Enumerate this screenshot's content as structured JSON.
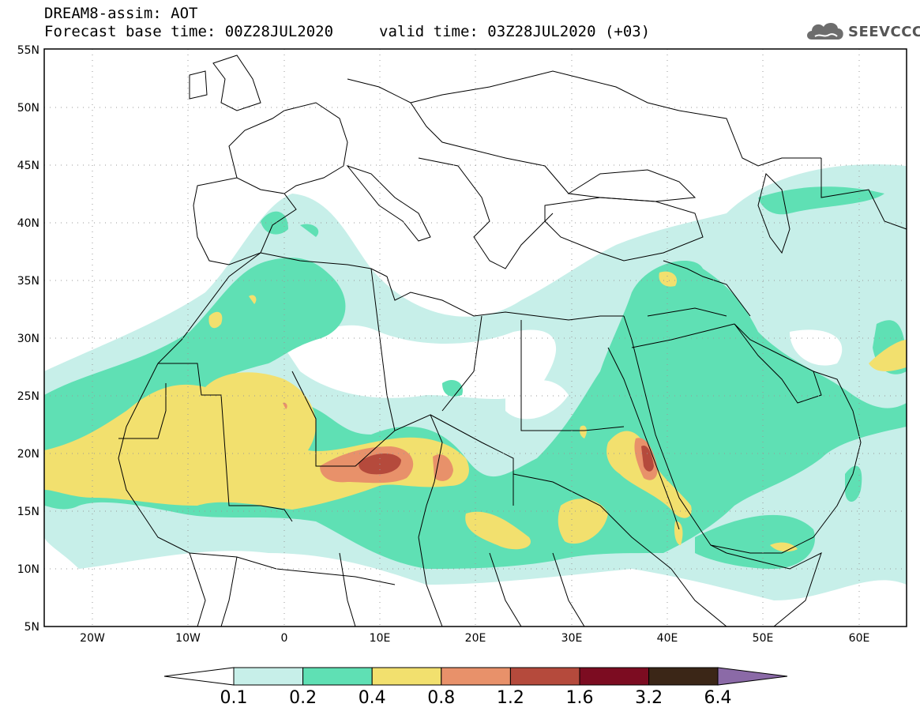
{
  "header": {
    "model_line": "DREAM8-assim: AOT",
    "base_time": "Forecast base time: 00Z28JUL2020",
    "valid_time": "valid time: 03Z28JUL2020 (+03)",
    "logo_text": "SEEVCCC"
  },
  "map": {
    "lon_range": [
      -25,
      65
    ],
    "lat_range": [
      5,
      55
    ],
    "lat_ticks": [
      "5N",
      "10N",
      "15N",
      "20N",
      "25N",
      "30N",
      "35N",
      "40N",
      "45N",
      "50N",
      "55N"
    ],
    "lon_ticks": [
      "20W",
      "10W",
      "0",
      "10E",
      "20E",
      "30E",
      "40E",
      "50E",
      "60E"
    ],
    "gridlines": "dotted"
  },
  "legend": {
    "levels": [
      "0.1",
      "0.2",
      "0.4",
      "0.8",
      "1.2",
      "1.6",
      "3.2",
      "6.4"
    ],
    "colors": [
      "#c7efe9",
      "#5fe0b4",
      "#f2e06e",
      "#e8916a",
      "#b54a3c",
      "#7c0c21",
      "#3b2617",
      "#8b6aa7"
    ],
    "low_color": "#ffffff",
    "high_color": "#8b6aa7"
  }
}
